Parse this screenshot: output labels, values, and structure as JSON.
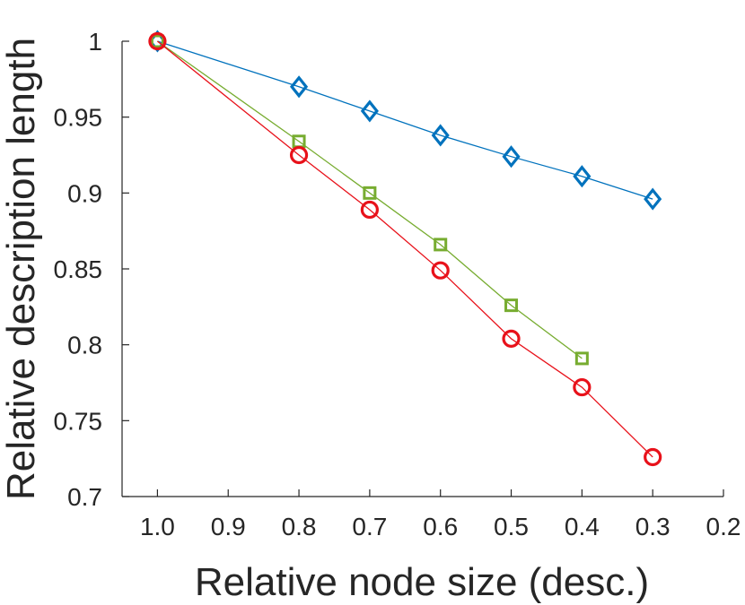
{
  "chart_data": {
    "type": "line",
    "title": "",
    "xlabel": "Relative node size (desc.)",
    "ylabel": "Relative description length",
    "xlim": [
      1.05,
      0.2
    ],
    "ylim": [
      0.7,
      1.0
    ],
    "x_reversed": true,
    "x_ticks": [
      {
        "value": 1.0,
        "label": "1.0"
      },
      {
        "value": 0.9,
        "label": "0.9"
      },
      {
        "value": 0.8,
        "label": "0.8"
      },
      {
        "value": 0.7,
        "label": "0.7"
      },
      {
        "value": 0.6,
        "label": "0.6"
      },
      {
        "value": 0.5,
        "label": "0.5"
      },
      {
        "value": 0.4,
        "label": "0.4"
      },
      {
        "value": 0.3,
        "label": "0.3"
      },
      {
        "value": 0.2,
        "label": "0.2"
      }
    ],
    "y_ticks": [
      {
        "value": 0.7,
        "label": "0.7"
      },
      {
        "value": 0.75,
        "label": "0.75"
      },
      {
        "value": 0.8,
        "label": "0.8"
      },
      {
        "value": 0.85,
        "label": "0.85"
      },
      {
        "value": 0.9,
        "label": "0.9"
      },
      {
        "value": 0.95,
        "label": "0.95"
      },
      {
        "value": 1.0,
        "label": "1"
      }
    ],
    "grid": false,
    "legend": "none",
    "series": [
      {
        "name": "diamond-series",
        "color": "#0072BD",
        "marker": "diamond",
        "x": [
          1.0,
          0.8,
          0.7,
          0.6,
          0.5,
          0.4,
          0.3
        ],
        "y": [
          1.0,
          0.97,
          0.954,
          0.938,
          0.924,
          0.911,
          0.896
        ]
      },
      {
        "name": "square-series",
        "color": "#77AC30",
        "marker": "square",
        "x": [
          1.0,
          0.8,
          0.7,
          0.6,
          0.5,
          0.4
        ],
        "y": [
          1.0,
          0.934,
          0.9,
          0.866,
          0.826,
          0.791
        ]
      },
      {
        "name": "circle-series",
        "color": "#E8111A",
        "marker": "circle",
        "x": [
          1.0,
          0.8,
          0.7,
          0.6,
          0.5,
          0.4,
          0.3
        ],
        "y": [
          1.0,
          0.925,
          0.889,
          0.849,
          0.804,
          0.772,
          0.726
        ]
      }
    ]
  }
}
